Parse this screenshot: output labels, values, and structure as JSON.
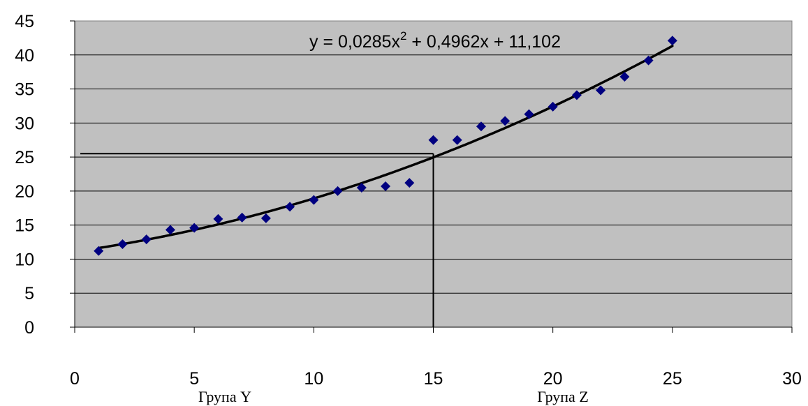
{
  "chart_data": {
    "type": "scatter",
    "background": "#c0c0c0",
    "marker_color": "#000080",
    "trend_color": "#000000",
    "xlim": [
      0,
      30
    ],
    "ylim": [
      0,
      45
    ],
    "x_ticks": [
      0,
      5,
      10,
      15,
      20,
      25,
      30
    ],
    "y_ticks": [
      0,
      5,
      10,
      15,
      20,
      25,
      30,
      35,
      40,
      45
    ],
    "grid": true,
    "points": [
      {
        "x": 1,
        "y": 11.2
      },
      {
        "x": 2,
        "y": 12.2
      },
      {
        "x": 3,
        "y": 12.9
      },
      {
        "x": 4,
        "y": 14.3
      },
      {
        "x": 5,
        "y": 14.6
      },
      {
        "x": 6,
        "y": 15.9
      },
      {
        "x": 7,
        "y": 16.1
      },
      {
        "x": 8,
        "y": 16.0
      },
      {
        "x": 9,
        "y": 17.7
      },
      {
        "x": 10,
        "y": 18.7
      },
      {
        "x": 11,
        "y": 20.0
      },
      {
        "x": 12,
        "y": 20.5
      },
      {
        "x": 13,
        "y": 20.7
      },
      {
        "x": 14,
        "y": 21.2
      },
      {
        "x": 15,
        "y": 27.5
      },
      {
        "x": 16,
        "y": 27.5
      },
      {
        "x": 17,
        "y": 29.5
      },
      {
        "x": 18,
        "y": 30.3
      },
      {
        "x": 19,
        "y": 31.3
      },
      {
        "x": 20,
        "y": 32.4
      },
      {
        "x": 21,
        "y": 34.1
      },
      {
        "x": 22,
        "y": 34.8
      },
      {
        "x": 23,
        "y": 36.8
      },
      {
        "x": 24,
        "y": 39.2
      },
      {
        "x": 25,
        "y": 42.1
      }
    ],
    "trendline": {
      "type": "polynomial",
      "coefficients": [
        0.0285,
        0.4962,
        11.102
      ],
      "x_range": [
        1,
        25
      ],
      "label_prefix": "y = 0,0285x",
      "label_exponent": "2",
      "label_suffix": " + 0,4962x + 11,102"
    },
    "reference_lines": {
      "x": 15,
      "y": 25.5
    },
    "group_labels": [
      "Група Y",
      "Група Z"
    ]
  }
}
